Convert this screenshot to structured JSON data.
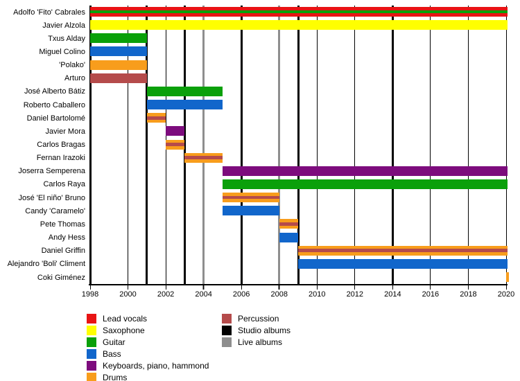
{
  "chart_data": {
    "type": "timeline",
    "x_axis": {
      "min": 1998,
      "max": 2020,
      "tick_years": [
        1998,
        2000,
        2002,
        2004,
        2006,
        2008,
        2010,
        2012,
        2014,
        2016,
        2018,
        2020
      ]
    },
    "colors": {
      "lead_vocals": "#e81414",
      "saxophone": "#ffff00",
      "guitar": "#0aa00a",
      "bass": "#1166cb",
      "keyboards": "#7d0c7d",
      "drums": "#f89d1c",
      "percussion": "#b54b4b",
      "studio": "#000000",
      "live": "#8e8e8e"
    },
    "members": [
      {
        "name": "Adolfo 'Fito' Cabrales",
        "start": 1998,
        "end": 2020,
        "roles": [
          "lead_vocals",
          "guitar"
        ]
      },
      {
        "name": "Javier Alzola",
        "start": 1998,
        "end": 2020,
        "roles": [
          "saxophone"
        ]
      },
      {
        "name": "Txus Alday",
        "start": 1998,
        "end": 2001,
        "roles": [
          "guitar"
        ]
      },
      {
        "name": "Miguel Colino",
        "start": 1998,
        "end": 2001,
        "roles": [
          "bass"
        ]
      },
      {
        "name": "'Polako'",
        "start": 1998,
        "end": 2001,
        "roles": [
          "drums"
        ]
      },
      {
        "name": "Arturo",
        "start": 1998,
        "end": 2001,
        "roles": [
          "percussion"
        ]
      },
      {
        "name": "José Alberto Bátiz",
        "start": 2001,
        "end": 2005,
        "roles": [
          "guitar"
        ]
      },
      {
        "name": "Roberto Caballero",
        "start": 2001,
        "end": 2005,
        "roles": [
          "bass"
        ]
      },
      {
        "name": "Daniel Bartolomé",
        "start": 2001,
        "end": 2002,
        "roles": [
          "drums",
          "percussion"
        ]
      },
      {
        "name": "Javier Mora",
        "start": 2002,
        "end": 2003,
        "roles": [
          "keyboards"
        ]
      },
      {
        "name": "Carlos Bragas",
        "start": 2002,
        "end": 2003,
        "roles": [
          "drums",
          "percussion"
        ]
      },
      {
        "name": "Fernan Irazoki",
        "start": 2003,
        "end": 2005,
        "roles": [
          "drums",
          "percussion"
        ]
      },
      {
        "name": "Joserra Semperena",
        "start": 2005,
        "end": 2020,
        "roles": [
          "keyboards"
        ]
      },
      {
        "name": "Carlos Raya",
        "start": 2005,
        "end": 2020,
        "roles": [
          "guitar"
        ]
      },
      {
        "name": "José 'El niño' Bruno",
        "start": 2005,
        "end": 2008,
        "roles": [
          "drums",
          "percussion"
        ]
      },
      {
        "name": "Candy 'Caramelo'",
        "start": 2005,
        "end": 2008,
        "roles": [
          "bass"
        ]
      },
      {
        "name": "Pete Thomas",
        "start": 2008,
        "end": 2009,
        "roles": [
          "drums",
          "percussion"
        ]
      },
      {
        "name": "Andy Hess",
        "start": 2008,
        "end": 2009,
        "roles": [
          "bass"
        ]
      },
      {
        "name": "Daniel Griffin",
        "start": 2009,
        "end": 2020,
        "roles": [
          "drums",
          "percussion"
        ]
      },
      {
        "name": "Alejandro 'Boli' Climent",
        "start": 2009,
        "end": 2020,
        "roles": [
          "bass"
        ]
      },
      {
        "name": "Coki Giménez",
        "start": 2020,
        "end": 2020,
        "roles": [
          "drums"
        ]
      }
    ],
    "albums": [
      {
        "year": 1998,
        "type": "studio"
      },
      {
        "year": 2001,
        "type": "studio"
      },
      {
        "year": 2003,
        "type": "studio"
      },
      {
        "year": 2004,
        "type": "live"
      },
      {
        "year": 2006,
        "type": "studio"
      },
      {
        "year": 2008,
        "type": "live"
      },
      {
        "year": 2009,
        "type": "studio"
      },
      {
        "year": 2014,
        "type": "studio"
      }
    ],
    "legend": {
      "col1": [
        {
          "key": "lead_vocals",
          "label": "Lead vocals"
        },
        {
          "key": "saxophone",
          "label": "Saxophone"
        },
        {
          "key": "guitar",
          "label": "Guitar"
        },
        {
          "key": "bass",
          "label": "Bass"
        },
        {
          "key": "keyboards",
          "label": "Keyboards, piano, hammond"
        },
        {
          "key": "drums",
          "label": "Drums"
        }
      ],
      "col2": [
        {
          "key": "percussion",
          "label": "Percussion"
        },
        {
          "key": "studio",
          "label": "Studio albums"
        },
        {
          "key": "live",
          "label": "Live albums"
        }
      ]
    }
  }
}
